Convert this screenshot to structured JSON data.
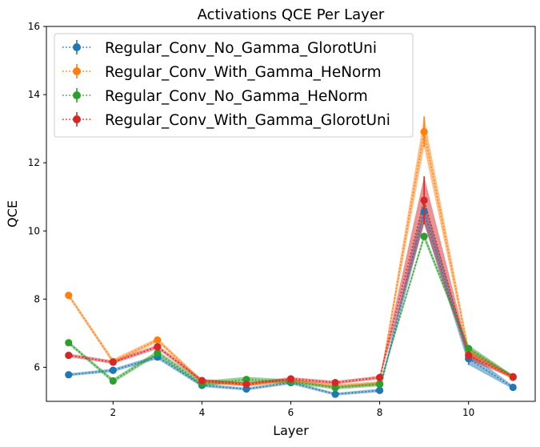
{
  "chart_data": {
    "type": "line",
    "title": "Activations QCE Per Layer",
    "xlabel": "Layer",
    "ylabel": "QCE",
    "xlim": [
      0.5,
      11.5
    ],
    "ylim": [
      5,
      16
    ],
    "xticks": [
      2,
      4,
      6,
      8,
      10
    ],
    "yticks": [
      6,
      8,
      10,
      12,
      14,
      16
    ],
    "legend_position": "top-left",
    "x": [
      1,
      2,
      3,
      4,
      5,
      6,
      7,
      8,
      9,
      10,
      11
    ],
    "series": [
      {
        "name": "Regular_Conv_No_Gamma_GlorotUni",
        "color": "#1f77b4",
        "values": [
          5.78,
          5.91,
          6.3,
          5.47,
          5.36,
          5.55,
          5.21,
          5.32,
          10.57,
          6.25,
          5.41
        ],
        "band": [
          0.04,
          0.05,
          0.06,
          0.05,
          0.04,
          0.05,
          0.04,
          0.05,
          0.35,
          0.18,
          0.05
        ]
      },
      {
        "name": "Regular_Conv_With_Gamma_HeNorm",
        "color": "#ff7f0e",
        "values": [
          8.11,
          6.17,
          6.8,
          5.58,
          5.5,
          5.6,
          5.45,
          5.53,
          12.91,
          6.46,
          5.7
        ],
        "band": [
          0.06,
          0.07,
          0.06,
          0.06,
          0.06,
          0.05,
          0.05,
          0.06,
          0.45,
          0.12,
          0.06
        ]
      },
      {
        "name": "Regular_Conv_No_Gamma_HeNorm",
        "color": "#2ca02c",
        "values": [
          6.72,
          5.6,
          6.42,
          5.52,
          5.64,
          5.58,
          5.4,
          5.5,
          9.84,
          6.55,
          5.72
        ],
        "band": [
          0.05,
          0.06,
          0.07,
          0.08,
          0.08,
          0.06,
          0.05,
          0.06,
          0.1,
          0.1,
          0.05
        ]
      },
      {
        "name": "Regular_Conv_With_Gamma_GlorotUni",
        "color": "#d62728",
        "values": [
          6.35,
          6.15,
          6.6,
          5.61,
          5.5,
          5.66,
          5.55,
          5.7,
          10.9,
          6.35,
          5.72
        ],
        "band": [
          0.05,
          0.05,
          0.06,
          0.05,
          0.05,
          0.05,
          0.05,
          0.05,
          0.7,
          0.12,
          0.05
        ]
      }
    ]
  }
}
